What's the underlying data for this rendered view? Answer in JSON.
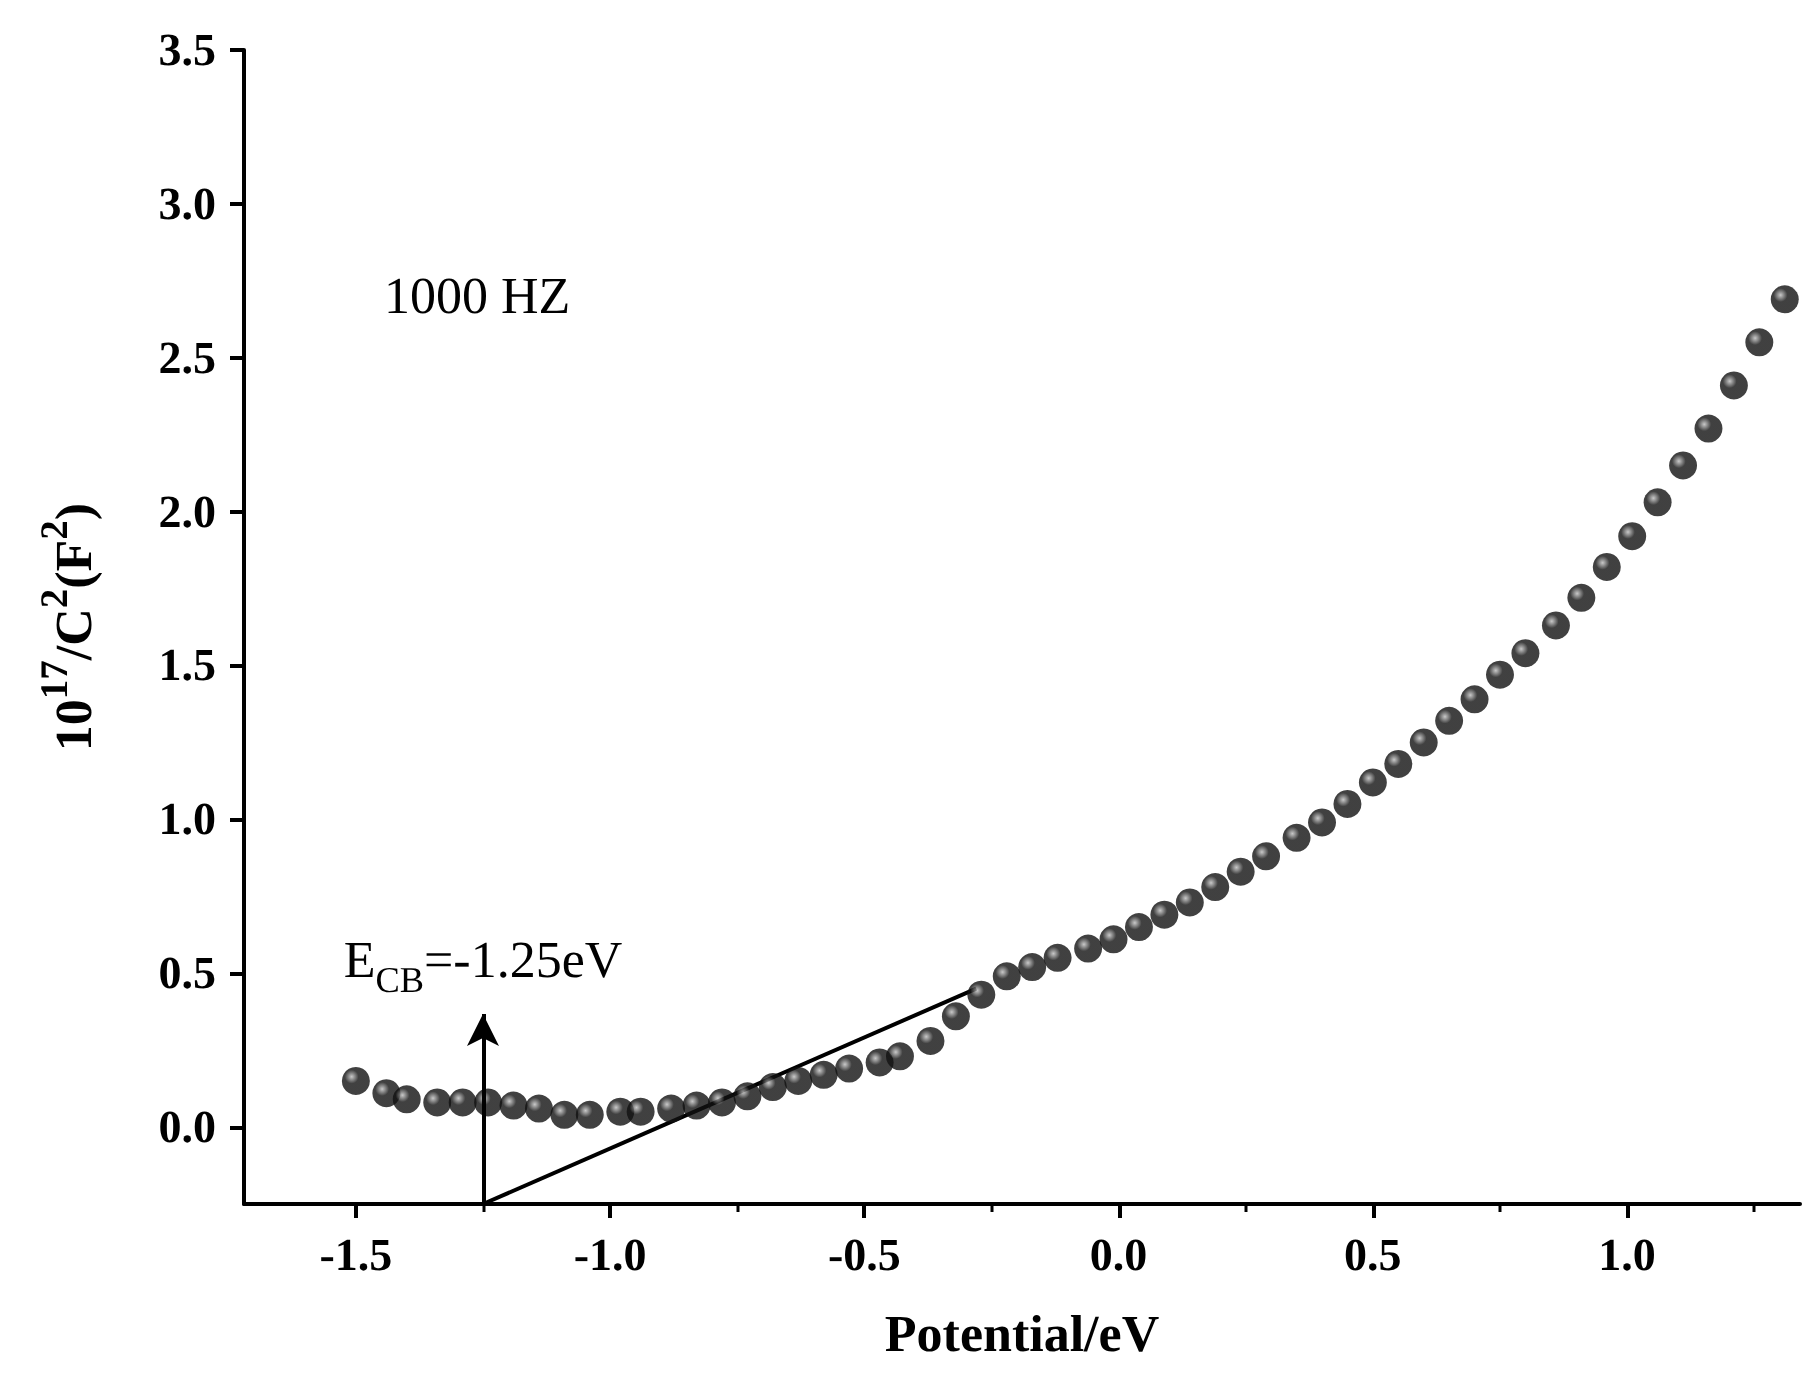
{
  "chart_data": {
    "type": "scatter",
    "xlabel": "Potential/eV",
    "ylabel": "10$^{17}$/C$^{2}$(F$^{2}$)",
    "xlim": [
      -1.72,
      1.34
    ],
    "xticks": [
      -1.5,
      {
        "value": -1,
        "label": "-1.0"
      },
      -0.5,
      {
        "value": 0,
        "label": "0.0"
      },
      0.5,
      {
        "value": 1,
        "label": "1.0"
      }
    ],
    "ylim": [
      -0.25,
      3.5
    ],
    "yticks": [
      {
        "value": 0,
        "label": "0.0"
      },
      0.5,
      {
        "value": 1,
        "label": "1.0"
      },
      1.5,
      {
        "value": 2,
        "label": "2.0"
      },
      2.5,
      {
        "value": 3,
        "label": "3.0"
      },
      3.5
    ],
    "marker": "circle",
    "grid": false,
    "annotations": [
      "1000 HZ",
      "E$_{CB}$=-1.25eV"
    ],
    "series": [
      {
        "color": "#111111",
        "x": [
          -1.5,
          -1.44,
          -1.4,
          -1.34,
          -1.29,
          -1.24,
          -1.19,
          -1.14,
          -1.09,
          -1.04,
          -0.98,
          -0.94,
          -0.88,
          -0.83,
          -0.78,
          -0.73,
          -0.68,
          -0.63,
          -0.58,
          -0.53,
          -0.47,
          -0.43,
          -0.37,
          -0.32,
          -0.27,
          -0.22,
          -0.17,
          -0.12,
          -0.06,
          -0.01,
          0.04,
          0.09,
          0.14,
          0.19,
          0.24,
          0.29,
          0.35,
          0.4,
          0.45,
          0.5,
          0.55,
          0.6,
          0.65,
          0.7,
          0.75,
          0.8,
          0.86,
          0.91,
          0.96,
          1.01,
          1.06,
          1.11,
          1.16,
          1.21,
          1.26,
          1.31
        ],
        "values": [
          0.15,
          0.11,
          0.09,
          0.08,
          0.08,
          0.08,
          0.07,
          0.06,
          0.04,
          0.04,
          0.05,
          0.05,
          0.06,
          0.07,
          0.08,
          0.1,
          0.13,
          0.15,
          0.17,
          0.19,
          0.21,
          0.23,
          0.28,
          0.36,
          0.43,
          0.49,
          0.52,
          0.55,
          0.58,
          0.61,
          0.65,
          0.69,
          0.73,
          0.78,
          0.83,
          0.88,
          0.94,
          0.99,
          1.05,
          1.12,
          1.18,
          1.25,
          1.32,
          1.39,
          1.47,
          1.54,
          1.63,
          1.72,
          1.82,
          1.92,
          2.03,
          2.15,
          2.27,
          2.41,
          2.55,
          2.69
        ]
      },
      {
        "type": "line",
        "color": "#000000",
        "x": [
          -1.25,
          -0.28
        ],
        "values": [
          -0.25,
          0.45
        ],
        "marker": "none",
        "line_style": "solid"
      }
    ]
  }
}
